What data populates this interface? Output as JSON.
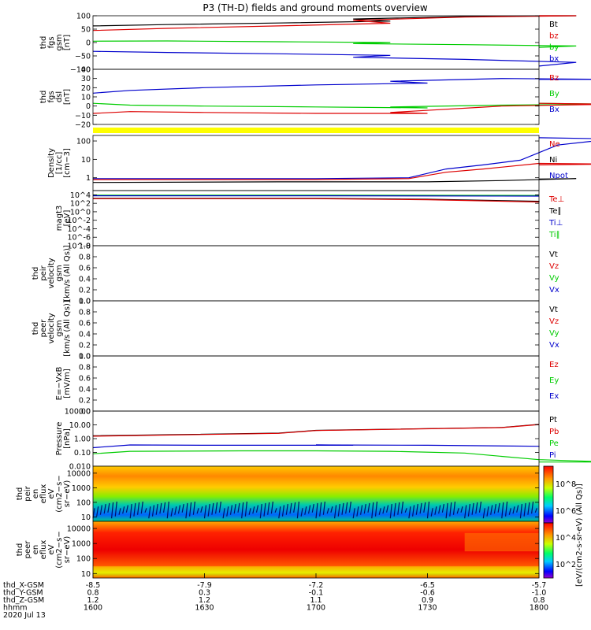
{
  "chart_data": {
    "type": "line",
    "title": "P3 (TH-D) fields and ground moments overview",
    "time_axis": {
      "range": [
        1600,
        1800
      ],
      "ticks": [
        "1600",
        "1630",
        "1700",
        "1730",
        "1800"
      ]
    },
    "footer": {
      "row_labels": [
        "thd_X-GSM",
        "thd_Y-GSM",
        "thd_Z-GSM",
        "hhmm",
        "2020 Jul 13"
      ],
      "x_gsm": [
        "-8.5",
        "-7.9",
        "-7.2",
        "-6.5",
        "-5.7"
      ],
      "y_gsm": [
        "0.8",
        "0.3",
        "-0.1",
        "-0.6",
        "-1.0"
      ],
      "z_gsm": [
        "1.2",
        "1.2",
        "1.1",
        "0.9",
        "0.8"
      ],
      "hhmm": [
        "1600",
        "1630",
        "1700",
        "1730",
        "1800"
      ]
    },
    "colorbar_label": "[eV/(cm2-s-sr-eV) (All Qs)]",
    "colorbar_ticks": [
      "10^2",
      "10^4",
      "10^6",
      "10^8"
    ],
    "colors": {
      "black": "#000000",
      "red": "#dd0000",
      "green": "#00cc00",
      "blue": "#0000cc",
      "yellow": "#ffff00"
    },
    "panels": [
      {
        "id": "fgs_gsm",
        "ylabel": [
          "thd",
          "fgs",
          "gsm",
          "[nT]"
        ],
        "ylim": [
          -100,
          100
        ],
        "scale": "linear",
        "ytick_values": [
          100,
          50,
          0,
          -50,
          -100
        ],
        "yticks": [
          "100",
          "50",
          "0",
          "−50",
          "−100"
        ],
        "legend": [
          {
            "label": "Bt",
            "color": "#000000"
          },
          {
            "label": "bz",
            "color": "#dd0000"
          },
          {
            "label": "by",
            "color": "#00cc00"
          },
          {
            "label": "bx",
            "color": "#0000cc"
          }
        ],
        "series": [
          {
            "name": "Bt",
            "color": "#000000",
            "x": [
              1600,
              1620,
              1650,
              1680,
              1710,
              1740,
              1770,
              1800
            ],
            "y": [
              62,
              67,
              73,
              80,
              88,
              97,
              104,
              108
            ]
          },
          {
            "name": "bz",
            "color": "#dd0000",
            "x": [
              1600,
              1620,
              1650,
              1680,
              1710,
              1740,
              1770,
              1800
            ],
            "y": [
              45,
              53,
              62,
              72,
              83,
              95,
              105,
              110
            ]
          },
          {
            "name": "by",
            "color": "#00cc00",
            "x": [
              1600,
              1620,
              1650,
              1680,
              1710,
              1740,
              1770,
              1800
            ],
            "y": [
              5,
              6,
              3,
              0,
              -4,
              -8,
              -13,
              -18
            ]
          },
          {
            "name": "bx",
            "color": "#0000cc",
            "x": [
              1600,
              1620,
              1650,
              1680,
              1710,
              1740,
              1770,
              1800
            ],
            "y": [
              -33,
              -37,
              -42,
              -48,
              -55,
              -63,
              -74,
              -88
            ]
          }
        ]
      },
      {
        "id": "fgs_dsl",
        "ylabel": [
          "thd",
          "fgs",
          "dsl",
          "[nT]"
        ],
        "ylim": [
          -20,
          40
        ],
        "scale": "linear",
        "ytick_values": [
          40,
          30,
          20,
          10,
          0,
          -10,
          -20
        ],
        "yticks": [
          "40",
          "30",
          "20",
          "10",
          "0",
          "−10",
          "−20"
        ],
        "legend": [
          {
            "label": "Bz",
            "color": "#dd0000"
          },
          {
            "label": "By",
            "color": "#00cc00"
          },
          {
            "label": "Bx",
            "color": "#0000cc"
          }
        ],
        "series": [
          {
            "name": "Bx",
            "color": "#0000cc",
            "x": [
              1600,
              1610,
              1630,
              1660,
              1690,
              1720,
              1750,
              1780,
              1800
            ],
            "y": [
              14,
              17,
              20,
              23,
              25,
              27,
              30,
              29,
              29
            ]
          },
          {
            "name": "By",
            "color": "#00cc00",
            "x": [
              1600,
              1610,
              1630,
              1660,
              1690,
              1720,
              1750,
              1780,
              1800
            ],
            "y": [
              3,
              1,
              0,
              -1,
              -2,
              -1,
              1,
              2,
              3
            ]
          },
          {
            "name": "Bz",
            "color": "#dd0000",
            "x": [
              1600,
              1610,
              1630,
              1660,
              1690,
              1720,
              1750,
              1780,
              1800
            ],
            "y": [
              -8,
              -6,
              -7,
              -8,
              -8,
              -7,
              0,
              2,
              3
            ]
          }
        ]
      },
      {
        "id": "density",
        "ylabel": [
          "Density",
          "[1/cc]",
          "[cm−3]"
        ],
        "ylim": [
          0.2,
          200
        ],
        "scale": "log",
        "ytick_values": [
          100,
          10,
          1
        ],
        "yticks": [
          "100",
          "10",
          "1"
        ],
        "legend": [
          {
            "label": "Ne",
            "color": "#dd0000"
          },
          {
            "label": "Ni",
            "color": "#000000"
          },
          {
            "label": "Npot",
            "color": "#0000cc"
          }
        ],
        "series": [
          {
            "name": "Npot",
            "color": "#0000cc",
            "x": [
              1600,
              1650,
              1700,
              1725,
              1735,
              1745,
              1755,
              1765,
              1780,
              1800
            ],
            "y": [
              0.9,
              0.9,
              0.9,
              1.0,
              3.0,
              5.0,
              9.0,
              60,
              130,
              150
            ]
          },
          {
            "name": "Ne",
            "color": "#dd0000",
            "x": [
              1600,
              1650,
              1700,
              1725,
              1735,
              1745,
              1760,
              1780,
              1800
            ],
            "y": [
              0.8,
              0.8,
              0.8,
              0.9,
              2.0,
              3.0,
              6.0,
              5.5,
              5.0
            ]
          },
          {
            "name": "Ni",
            "color": "#000000",
            "x": [
              1600,
              1650,
              1700,
              1730,
              1750,
              1770,
              1800
            ],
            "y": [
              0.55,
              0.6,
              0.6,
              0.6,
              0.7,
              0.9,
              0.85
            ]
          }
        ]
      },
      {
        "id": "temperature",
        "ylabel": [
          "magt3",
          "[eV]"
        ],
        "ylim": [
          1e-08,
          100000.0
        ],
        "scale": "log",
        "ytick_values": [
          10000.0,
          100.0,
          1,
          0.01,
          0.0001,
          1e-06,
          1e-08
        ],
        "yticks": [
          "10^4",
          "10^2",
          "10^0",
          "10^-2",
          "10^-4",
          "10^-6",
          "10^-8"
        ],
        "legend": [
          {
            "label": "Te⊥",
            "color": "#dd0000"
          },
          {
            "label": "Te∥",
            "color": "#000000"
          },
          {
            "label": "Ti⊥",
            "color": "#0000cc"
          },
          {
            "label": "Ti∥",
            "color": "#00cc00"
          }
        ],
        "series": [
          {
            "name": "Ti∥",
            "color": "#00cc00",
            "x": [
              1600,
              1700,
              1800
            ],
            "y": [
              8000,
              8000,
              7000
            ]
          },
          {
            "name": "Ti⊥",
            "color": "#0000cc",
            "x": [
              1600,
              1700,
              1800
            ],
            "y": [
              6000,
              6000,
              5000
            ]
          },
          {
            "name": "Te∥",
            "color": "#000000",
            "x": [
              1600,
              1700,
              1730,
              1760,
              1800
            ],
            "y": [
              1500,
              1500,
              900,
              300,
              250
            ]
          },
          {
            "name": "Te⊥",
            "color": "#dd0000",
            "x": [
              1600,
              1700,
              1730,
              1760,
              1800
            ],
            "y": [
              1200,
              1200,
              700,
              200,
              180
            ]
          }
        ]
      },
      {
        "id": "peir_velocity",
        "ylabel": [
          "thd",
          "peir",
          "velocity",
          "gsm",
          "[km/s (All Qs)]"
        ],
        "ylim": [
          0,
          1
        ],
        "scale": "linear",
        "ytick_values": [
          1.0,
          0.8,
          0.6,
          0.4,
          0.2,
          0.0
        ],
        "yticks": [
          "1.0",
          "0.8",
          "0.6",
          "0.4",
          "0.2",
          "0.0"
        ],
        "legend": [
          {
            "label": "Vt",
            "color": "#000000"
          },
          {
            "label": "Vz",
            "color": "#dd0000"
          },
          {
            "label": "Vy",
            "color": "#00cc00"
          },
          {
            "label": "Vx",
            "color": "#0000cc"
          }
        ],
        "series": []
      },
      {
        "id": "peer_velocity",
        "ylabel": [
          "thd",
          "peer",
          "velocity",
          "gsm",
          "[km/s (All Qs)]"
        ],
        "ylim": [
          0,
          1
        ],
        "scale": "linear",
        "ytick_values": [
          1.0,
          0.8,
          0.6,
          0.4,
          0.2,
          0.0
        ],
        "yticks": [
          "1.0",
          "0.8",
          "0.6",
          "0.4",
          "0.2",
          "0.0"
        ],
        "legend": [
          {
            "label": "Vt",
            "color": "#000000"
          },
          {
            "label": "Vz",
            "color": "#dd0000"
          },
          {
            "label": "Vy",
            "color": "#00cc00"
          },
          {
            "label": "Vx",
            "color": "#0000cc"
          }
        ],
        "series": []
      },
      {
        "id": "efield",
        "ylabel": [
          "E=−VxB",
          "[mV/m]"
        ],
        "ylim": [
          0,
          1
        ],
        "scale": "linear",
        "ytick_values": [
          1.0,
          0.8,
          0.6,
          0.4,
          0.2,
          0.0
        ],
        "yticks": [
          "1.0",
          "0.8",
          "0.6",
          "0.4",
          "0.2",
          "0.0"
        ],
        "legend": [
          {
            "label": "Ez",
            "color": "#dd0000"
          },
          {
            "label": "Ey",
            "color": "#00cc00"
          },
          {
            "label": "Ex",
            "color": "#0000cc"
          }
        ],
        "series": []
      },
      {
        "id": "pressure",
        "ylabel": [
          "Pressure",
          "[nPa]"
        ],
        "ylim": [
          0.01,
          100
        ],
        "scale": "log",
        "ytick_values": [
          100,
          10,
          1,
          0.1,
          0.01
        ],
        "yticks": [
          "100.00",
          "10.00",
          "1.00",
          "0.10",
          "0.010"
        ],
        "legend": [
          {
            "label": "Pt",
            "color": "#000000"
          },
          {
            "label": "Pb",
            "color": "#dd0000"
          },
          {
            "label": "Pe",
            "color": "#00cc00"
          },
          {
            "label": "Pi",
            "color": "#0000cc"
          }
        ],
        "series": [
          {
            "name": "Pt",
            "color": "#000000",
            "x": [
              1600,
              1650,
              1700,
              1750,
              1800
            ],
            "y": [
              1.6,
              2.5,
              4.0,
              6.5,
              11
            ]
          },
          {
            "name": "Pb",
            "color": "#dd0000",
            "x": [
              1600,
              1650,
              1700,
              1750,
              1800
            ],
            "y": [
              1.5,
              2.4,
              3.9,
              6.3,
              10.5
            ]
          },
          {
            "name": "Pi",
            "color": "#0000cc",
            "x": [
              1600,
              1610,
              1630,
              1670,
              1700,
              1730,
              1760,
              1800
            ],
            "y": [
              0.22,
              0.35,
              0.33,
              0.33,
              0.35,
              0.33,
              0.28,
              0.25
            ]
          },
          {
            "name": "Pe",
            "color": "#00cc00",
            "x": [
              1600,
              1610,
              1640,
              1700,
              1720,
              1740,
              1760,
              1780,
              1800
            ],
            "y": [
              0.08,
              0.12,
              0.13,
              0.13,
              0.12,
              0.09,
              0.03,
              0.02,
              0.02
            ]
          }
        ]
      },
      {
        "id": "peir_eflux",
        "ylabel": [
          "thd",
          "peir",
          "en",
          "eflux",
          "eV",
          "(cm2−s−",
          "sr−eV)"
        ],
        "ylim": [
          5,
          30000
        ],
        "scale": "log",
        "ytick_values": [
          10000,
          1000,
          100,
          10
        ],
        "yticks": [
          "10000",
          "1000",
          "100",
          "10"
        ],
        "type": "spectrogram",
        "legend": [],
        "series": []
      },
      {
        "id": "peer_eflux",
        "ylabel": [
          "thd",
          "peer",
          "en",
          "eflux",
          "eV",
          "(cm2−s−",
          "sr−eV)"
        ],
        "ylim": [
          5,
          30000
        ],
        "scale": "log",
        "ytick_values": [
          10000,
          1000,
          100,
          10
        ],
        "yticks": [
          "10000",
          "1000",
          "100",
          "10"
        ],
        "type": "spectrogram",
        "legend": [],
        "series": []
      }
    ]
  }
}
